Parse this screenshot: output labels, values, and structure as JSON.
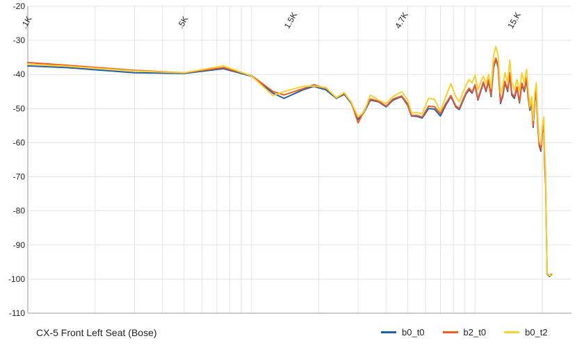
{
  "chart_data": {
    "type": "line",
    "title": "",
    "caption": "CX-5 Front Left Seat (Bose)",
    "xlabel": "",
    "ylabel": "",
    "x_scale": "log",
    "x_ticks": [
      {
        "value": 100,
        "label": ".1K"
      },
      {
        "value": 500,
        "label": ".5K"
      },
      {
        "value": 1500,
        "label": "1.5K"
      },
      {
        "value": 4700,
        "label": "4.7K"
      },
      {
        "value": 15000,
        "label": "15.K"
      }
    ],
    "ylim": [
      -110,
      -20
    ],
    "y_ticks": [
      -20,
      -30,
      -40,
      -50,
      -60,
      -70,
      -80,
      -90,
      -100,
      -110
    ],
    "grid": true,
    "legend_position": "bottom-right",
    "colors": {
      "b0_t0": "#1f5fa8",
      "b2_t0": "#f05a22",
      "b0_t2": "#f7d12e",
      "grid": "#e3e3e3",
      "axis": "#9a9a9a"
    },
    "x": [
      100,
      150,
      300,
      500,
      750,
      1000,
      1250,
      1400,
      1700,
      1900,
      2150,
      2400,
      2600,
      2800,
      3000,
      3200,
      3400,
      3700,
      4000,
      4300,
      4700,
      5000,
      5200,
      5500,
      5800,
      6200,
      6600,
      7000,
      7400,
      7800,
      8200,
      8500,
      8800,
      9100,
      9400,
      9700,
      10000,
      10300,
      10600,
      10900,
      11200,
      11500,
      11800,
      12100,
      12400,
      12700,
      13000,
      13300,
      13600,
      14000,
      14300,
      14600,
      15000,
      15400,
      15800,
      16200,
      16600,
      17000,
      17300,
      17600,
      17900,
      18200,
      18500,
      18800,
      19100,
      19400,
      19700,
      20000,
      20300,
      20500,
      20700,
      21000,
      21500,
      22000
    ],
    "series": [
      {
        "name": "b0_t0",
        "values": [
          -37.5,
          -38,
          -39.5,
          -39.7,
          -38.3,
          -40.5,
          -45.5,
          -47,
          -44.5,
          -43.5,
          -44.5,
          -47,
          -45.8,
          -48.5,
          -53.2,
          -51,
          -47.5,
          -48,
          -49.5,
          -47.5,
          -46.5,
          -49,
          -52.2,
          -52.3,
          -52.8,
          -50,
          -50.2,
          -52.2,
          -49,
          -46.5,
          -49.5,
          -50.3,
          -48,
          -45.8,
          -44.5,
          -45.5,
          -43.2,
          -47.5,
          -45,
          -42.5,
          -45,
          -42,
          -46.5,
          -38,
          -35.5,
          -38,
          -48.5,
          -46.5,
          -42.5,
          -45,
          -40,
          -46,
          -47,
          -44,
          -48.3,
          -43,
          -45,
          -41.5,
          -47,
          -50.5,
          -48,
          -55.5,
          -48,
          -45,
          -55.5,
          -61,
          -62.5,
          -57,
          -55,
          -66.5,
          -72.5,
          -98.5,
          -99.2,
          -98.8
        ]
      },
      {
        "name": "b2_t0",
        "values": [
          -36.5,
          -37.3,
          -38.8,
          -39.5,
          -38,
          -40.3,
          -45,
          -46,
          -44.2,
          -43,
          -44,
          -46.8,
          -45.5,
          -48.2,
          -54.2,
          -50.5,
          -47.2,
          -47.8,
          -49.3,
          -47.2,
          -46.3,
          -48.6,
          -52,
          -52,
          -52.5,
          -49.3,
          -49.5,
          -51.5,
          -48.5,
          -46.2,
          -49.2,
          -50,
          -47.6,
          -45.5,
          -44,
          -45.2,
          -43,
          -47.2,
          -44.6,
          -42.2,
          -44.6,
          -41.5,
          -46,
          -37.5,
          -35.2,
          -37.5,
          -48,
          -46,
          -42,
          -44.6,
          -39.5,
          -45.5,
          -46.5,
          -43.6,
          -48,
          -42.5,
          -44.6,
          -41,
          -46.5,
          -50,
          -47.5,
          -55,
          -47.5,
          -44.5,
          -55,
          -60.5,
          -62,
          -56.5,
          -54.5,
          -66,
          -72,
          -98.3,
          -99,
          -98.6
        ]
      },
      {
        "name": "b0_t2",
        "values": [
          -37,
          -37.6,
          -39,
          -39.5,
          -37.5,
          -40.4,
          -46.2,
          -45,
          -43.5,
          -43.4,
          -43.8,
          -46.8,
          -45.3,
          -48.2,
          -52.5,
          -50.8,
          -46,
          -47.5,
          -48.5,
          -46.5,
          -45,
          -47.5,
          -51.2,
          -51.2,
          -51.5,
          -47,
          -47.3,
          -50.8,
          -46.5,
          -42.7,
          -46.5,
          -48,
          -45.5,
          -43.3,
          -41.5,
          -42.5,
          -40.2,
          -44.5,
          -42.2,
          -40.5,
          -42.5,
          -40,
          -44,
          -34.5,
          -31.8,
          -34.5,
          -45.5,
          -43.5,
          -39.5,
          -42.5,
          -35.8,
          -42.2,
          -44.5,
          -41.5,
          -45,
          -39.5,
          -42.5,
          -38.5,
          -44.5,
          -49.5,
          -46.5,
          -53.5,
          -45.5,
          -42.5,
          -53,
          -59.5,
          -60.5,
          -55,
          -52.5,
          -62.5,
          -70,
          -98.3,
          -99,
          -98.9
        ]
      }
    ]
  }
}
